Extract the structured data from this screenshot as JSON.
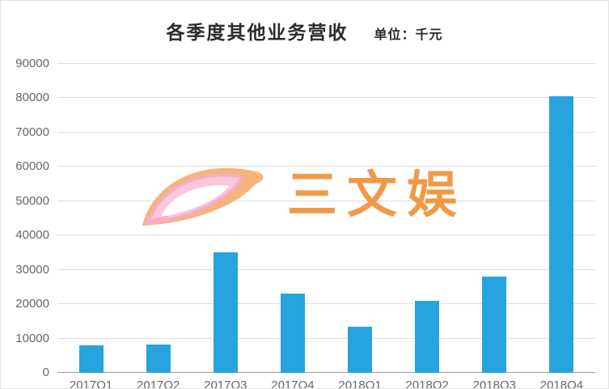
{
  "header": {
    "title": "各季度其他业务营收",
    "unit_label": "单位：千元"
  },
  "watermark": {
    "text": "三文娱"
  },
  "colors": {
    "bar": "#27a4de",
    "gridline": "#dcdcdc",
    "axis_line": "#9b9b9b",
    "tick_text": "#666666",
    "title_text": "#2b2b2b",
    "watermark_text": "#f0953e",
    "watermark_pink": "#f6a9c6",
    "watermark_pink_fill": "#fbc6d8",
    "watermark_orange": "#f6b078"
  },
  "chart_data": {
    "type": "bar",
    "title": "各季度其他业务营收",
    "unit": "单位：千元",
    "categories": [
      "2017Q1",
      "2017Q2",
      "2017Q3",
      "2017Q4",
      "2018Q1",
      "2018Q2",
      "2018Q3",
      "2018Q4"
    ],
    "values": [
      8000,
      8300,
      35000,
      23000,
      13500,
      21000,
      28000,
      80500
    ],
    "xlabel": "",
    "ylabel": "",
    "ylim": [
      0,
      90000
    ],
    "ytick_interval": 10000,
    "yticks": [
      0,
      10000,
      20000,
      30000,
      40000,
      50000,
      60000,
      70000,
      80000,
      90000
    ],
    "grid": true,
    "legend": false,
    "bar_color": "#27a4de"
  }
}
